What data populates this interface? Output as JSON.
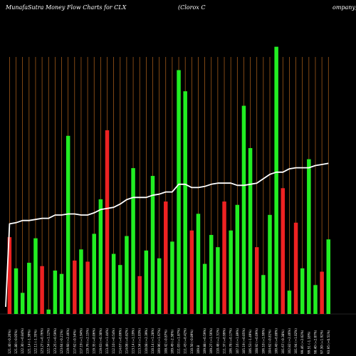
{
  "header": {
    "left_title": "MunafaSutra  Money Flow  Charts for CLX",
    "middle_title": "(Clorox C",
    "right_title": "ompany)"
  },
  "colors": {
    "background": "#000000",
    "up": "#22ee22",
    "down": "#ee2222",
    "gridline": "#b5651d",
    "line": "#ffffff"
  },
  "chart_data": {
    "type": "bar",
    "title": "MunafaSutra  Money Flow  Charts for CLX (Clorox Company)",
    "xlabel": "",
    "ylabel": "",
    "categories": [
      "121.40 (-0.26%)",
      "121.80 (-0.05%)",
      "122.30 (+0.84%)",
      "121.14 (-1.39%)",
      "122.11 (-1.35%)",
      "123.27 (+0.76%)",
      "122.54 (+1.12%)",
      "123.25 (+0.59%)",
      "123.64 (-0.21%)",
      "119.60 (+2.46%)",
      "117.62 (-0.54%)",
      "117.19 (+1.94%)",
      "119.76 (+2.15%)",
      "119.35 (+0.06%)",
      "119.63 (+0.30%)",
      "113.49 (+1.44%)",
      "112.10 (+0.54%)",
      "114.67 (+0.06%)",
      "114.08 (+0.82%)",
      "113.14 (+1.19%)",
      "113.34 (+1.03%)",
      "110.08 (+2.39%)",
      "110.14 (+1.28%)",
      "109.96 (+1.67%)",
      "108.42 (-0.87%)",
      "109.49 (-2.30%)",
      "111.03 (+1.87%)",
      "111.43 (+0.42%)",
      "110.50 (-0.89%)",
      "109.8",
      "109.88 (+0.59%)",
      "109.27 (+1.56%)",
      "110.48 (+2.31%)",
      "111.37 (+0.99%)",
      "106.78 (+0.17%)",
      "107.16 (+1.89%)",
      "105.19 (+0.05%)",
      "106.53 (-1.49%)",
      "108.92 (+0.09%)",
      "106.10 (+1.99%)",
      "104.62 (-0.81%)",
      "100.40 (+0.80%)",
      "101.67 (-0.38%)",
      "102.82 (+2.46%)",
      "101.94 (+1.02%)",
      "99.46 (+2.02%)",
      "99.51 (-1.18%)",
      "98.40 (+2.87%)",
      "97.30 (+1.92%)",
      "93.95 (+0.51%)"
    ],
    "values": [
      69,
      41,
      19,
      46,
      68,
      43,
      4,
      39,
      36,
      160,
      48,
      58,
      47,
      72,
      103,
      165,
      54,
      44,
      70,
      131,
      34,
      57,
      124,
      50,
      101,
      65,
      219,
      200,
      75,
      90,
      45,
      71,
      60,
      101,
      75,
      98,
      187,
      149,
      60,
      35,
      89,
      240,
      113,
      21,
      82,
      41,
      139,
      26,
      38,
      67
    ],
    "directions": [
      "red",
      "green",
      "green",
      "green",
      "green",
      "red",
      "green",
      "green",
      "green",
      "green",
      "red",
      "green",
      "red",
      "green",
      "green",
      "red",
      "green",
      "green",
      "green",
      "green",
      "red",
      "green",
      "green",
      "green",
      "red",
      "green",
      "green",
      "green",
      "red",
      "green",
      "green",
      "green",
      "green",
      "red",
      "green",
      "green",
      "green",
      "green",
      "red",
      "green",
      "green",
      "green",
      "red",
      "green",
      "red",
      "green",
      "green",
      "green",
      "red",
      "green"
    ],
    "series": [
      {
        "values": [
          0.52,
          0.53,
          0.55,
          0.55,
          0.56,
          0.57,
          0.57,
          0.6,
          0.6,
          0.61,
          0.61,
          0.6,
          0.6,
          0.62,
          0.65,
          0.66,
          0.67,
          0.7,
          0.74,
          0.76,
          0.76,
          0.76,
          0.78,
          0.79,
          0.81,
          0.81,
          0.88,
          0.88,
          0.85,
          0.85,
          0.86,
          0.88,
          0.89,
          0.89,
          0.89,
          0.87,
          0.87,
          0.88,
          0.89,
          0.93,
          0.97,
          0.99,
          0.99,
          1.02,
          1.03,
          1.03,
          1.03,
          1.05,
          1.06,
          1.07
        ]
      }
    ],
    "ylim": [
      0,
      250
    ],
    "grid": true,
    "legend": "none"
  }
}
